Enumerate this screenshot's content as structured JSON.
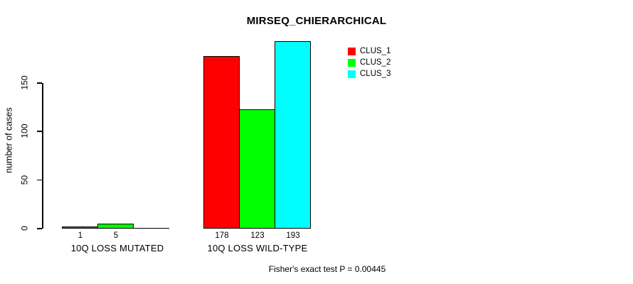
{
  "title": "MIRSEQ_CHIERARCHICAL",
  "y_axis": {
    "label": "number of cases",
    "tick_labels": [
      "0",
      "50",
      "100",
      "150"
    ]
  },
  "groups": [
    {
      "label": "10Q LOSS MUTATED",
      "value_labels": [
        "1",
        "5",
        ""
      ]
    },
    {
      "label": "10Q LOSS WILD-TYPE",
      "value_labels": [
        "178",
        "123",
        "193"
      ]
    }
  ],
  "legend": {
    "items": [
      {
        "label": "CLUS_1",
        "color": "#ff0000"
      },
      {
        "label": "CLUS_2",
        "color": "#00ff00"
      },
      {
        "label": "CLUS_3",
        "color": "#00ffff"
      }
    ]
  },
  "footer": "Fisher's exact test P = 0.00445",
  "colors": {
    "background": "#ffffff",
    "axis": "#000000",
    "bar_border": "#000000"
  },
  "chart_data": {
    "type": "bar",
    "title": "MIRSEQ_CHIERARCHICAL",
    "xlabel": "",
    "ylabel": "number of cases",
    "categories": [
      "10Q LOSS MUTATED",
      "10Q LOSS WILD-TYPE"
    ],
    "series": [
      {
        "name": "CLUS_1",
        "color": "#ff0000",
        "values": [
          1,
          178
        ]
      },
      {
        "name": "CLUS_2",
        "color": "#00ff00",
        "values": [
          5,
          123
        ]
      },
      {
        "name": "CLUS_3",
        "color": "#00ffff",
        "values": [
          0,
          193
        ]
      }
    ],
    "yticks": [
      0,
      50,
      100,
      150
    ],
    "ylim": [
      0,
      150
    ],
    "grid": false,
    "legend_position": "top-right",
    "bar_value_labels_shown": [
      [
        "1",
        "5",
        ""
      ],
      [
        "178",
        "123",
        "193"
      ]
    ],
    "annotation": "Fisher's exact test P = 0.00445"
  }
}
